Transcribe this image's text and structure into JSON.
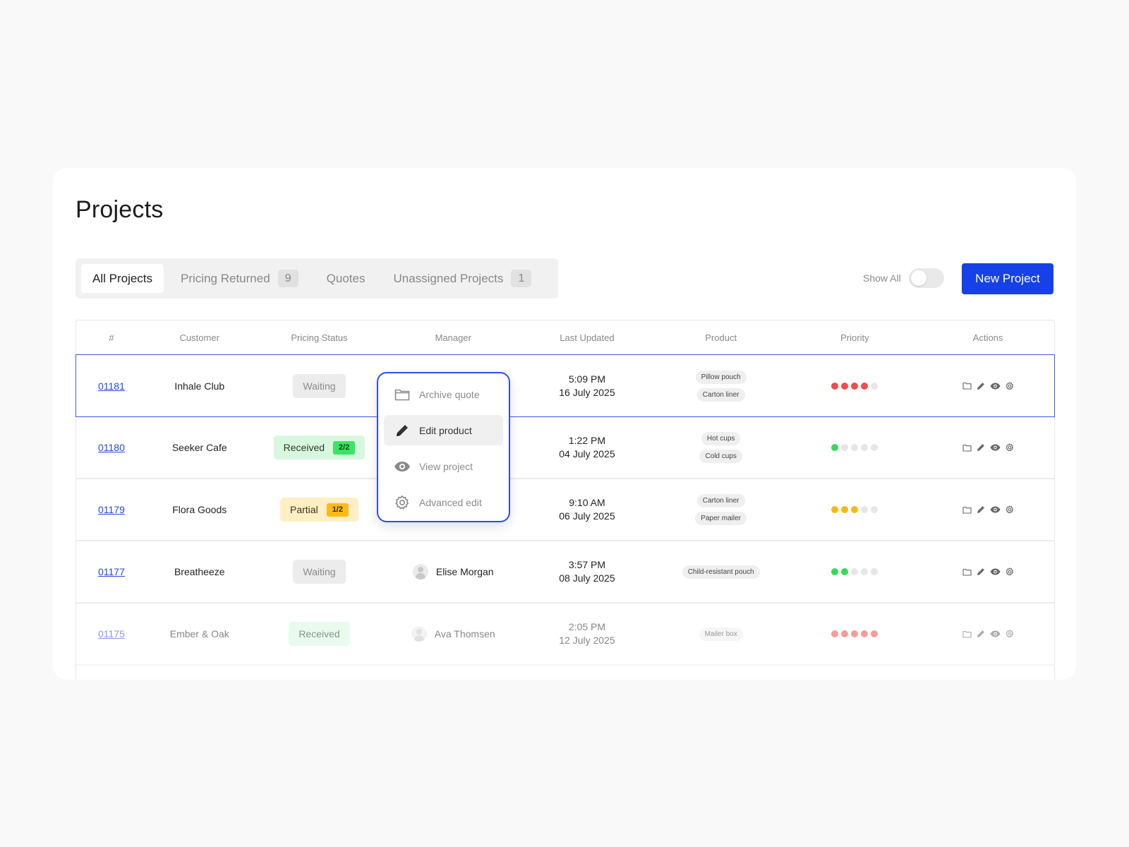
{
  "page": {
    "title": "Projects"
  },
  "tabs": [
    {
      "label": "All Projects",
      "count": ""
    },
    {
      "label": "Pricing Returned",
      "count": "9"
    },
    {
      "label": "Quotes",
      "count": ""
    },
    {
      "label": "Unassigned Projects",
      "count": "1"
    }
  ],
  "toolbar": {
    "show_all_label": "Show All",
    "show_all_on": false,
    "new_project_label": "New Project"
  },
  "table": {
    "headers": [
      "#",
      "Customer",
      "Pricing Status",
      "Manager",
      "Last Updated",
      "Product",
      "Priority",
      "Actions"
    ],
    "rows": [
      {
        "id": "01181",
        "customer": "Inhale Club",
        "status": "Waiting",
        "status_type": "waiting",
        "fraction": "",
        "manager": "",
        "time": "5:09 PM",
        "date": "16 July 2025",
        "products": [
          "Pillow pouch",
          "Carton liner"
        ],
        "priority": 4,
        "priority_color": "#f24b4b",
        "selected": true,
        "faded": false
      },
      {
        "id": "01180",
        "customer": "Seeker Cafe",
        "status": "Received",
        "status_type": "received",
        "fraction": "2/2",
        "manager": "",
        "time": "1:22 PM",
        "date": "04 July 2025",
        "products": [
          "Hot cups",
          "Cold cups"
        ],
        "priority": 1,
        "priority_color": "#35d957",
        "selected": false,
        "faded": false
      },
      {
        "id": "01179",
        "customer": "Flora Goods",
        "status": "Partial",
        "status_type": "partial",
        "fraction": "1/2",
        "manager": "",
        "time": "9:10 AM",
        "date": "06 July 2025",
        "products": [
          "Carton liner",
          "Paper mailer"
        ],
        "priority": 3,
        "priority_color": "#fbb616",
        "selected": false,
        "faded": false
      },
      {
        "id": "01177",
        "customer": "Breatheeze",
        "status": "Waiting",
        "status_type": "waiting",
        "fraction": "",
        "manager": "Elise Morgan",
        "time": "3:57 PM",
        "date": "08 July 2025",
        "products": [
          "Child-resistant pouch"
        ],
        "priority": 2,
        "priority_color": "#35d957",
        "selected": false,
        "faded": false
      },
      {
        "id": "01175",
        "customer": "Ember & Oak",
        "status": "Received",
        "status_type": "received",
        "fraction": "",
        "manager": "Ava Thomsen",
        "time": "2:05 PM",
        "date": "12 July 2025",
        "products": [
          "Mailer box"
        ],
        "priority": 5,
        "priority_color": "#f24b4b",
        "selected": false,
        "faded": true
      }
    ]
  },
  "context_menu": {
    "items": [
      {
        "label": "Archive quote",
        "icon": "folder-icon",
        "active": false
      },
      {
        "label": "Edit product",
        "icon": "pencil-icon",
        "active": true
      },
      {
        "label": "View project",
        "icon": "eye-icon",
        "active": false
      },
      {
        "label": "Advanced edit",
        "icon": "gear-icon",
        "active": false
      }
    ]
  },
  "colors": {
    "accent": "#1641e8",
    "empty_dot": "#e6e6e6"
  }
}
